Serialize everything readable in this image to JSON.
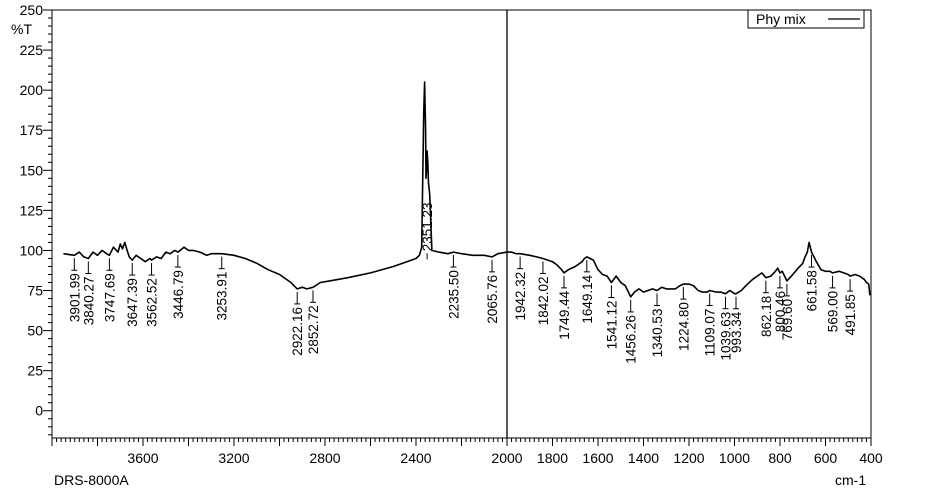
{
  "chart_data": {
    "type": "line",
    "ylabel": "%T",
    "xlabel": "cm-1",
    "instrument": "DRS-8000A",
    "xlim": [
      4000,
      400
    ],
    "ylim": [
      -17,
      250
    ],
    "x_reversed": true,
    "grid": false,
    "legend_position": "top-right",
    "y_ticks": [
      0,
      25,
      50,
      75,
      100,
      125,
      150,
      175,
      200,
      225,
      250
    ],
    "x_ticks": [
      3600,
      3200,
      2800,
      2400,
      2000,
      1600,
      1200,
      800,
      400
    ],
    "x_tick_labels": [
      "3600",
      "3200",
      "2800",
      "2400",
      "2000",
      "1800",
      "1600",
      "1400",
      "1200",
      "1000",
      "800",
      "600",
      "400"
    ],
    "x_tick_label_values": [
      3600,
      3200,
      2800,
      2400,
      2000,
      1800,
      1600,
      1400,
      1200,
      1000,
      800,
      600,
      400
    ],
    "cursor_x": 2000,
    "series": [
      {
        "name": "Phy mix",
        "color": "#000000",
        "points": [
          [
            3950,
            98
          ],
          [
            3901.99,
            97
          ],
          [
            3880,
            99
          ],
          [
            3860,
            96
          ],
          [
            3840.27,
            95
          ],
          [
            3820,
            99
          ],
          [
            3800,
            97
          ],
          [
            3780,
            100
          ],
          [
            3760,
            98
          ],
          [
            3747.69,
            97
          ],
          [
            3730,
            102
          ],
          [
            3710,
            99
          ],
          [
            3700,
            104
          ],
          [
            3690,
            101
          ],
          [
            3680,
            105
          ],
          [
            3670,
            100
          ],
          [
            3660,
            96
          ],
          [
            3647.39,
            94
          ],
          [
            3630,
            97
          ],
          [
            3610,
            95
          ],
          [
            3590,
            93
          ],
          [
            3570,
            95
          ],
          [
            3562.52,
            94
          ],
          [
            3540,
            96
          ],
          [
            3520,
            95
          ],
          [
            3500,
            99
          ],
          [
            3480,
            98
          ],
          [
            3460,
            100
          ],
          [
            3446.79,
            99
          ],
          [
            3420,
            102
          ],
          [
            3400,
            100
          ],
          [
            3380,
            100
          ],
          [
            3350,
            99
          ],
          [
            3320,
            97
          ],
          [
            3300,
            98
          ],
          [
            3253.91,
            98
          ],
          [
            3200,
            97
          ],
          [
            3150,
            95
          ],
          [
            3100,
            92
          ],
          [
            3050,
            88
          ],
          [
            3000,
            85
          ],
          [
            2950,
            80
          ],
          [
            2922.16,
            76
          ],
          [
            2900,
            77
          ],
          [
            2880,
            76
          ],
          [
            2852.72,
            77
          ],
          [
            2820,
            80
          ],
          [
            2780,
            81
          ],
          [
            2700,
            83
          ],
          [
            2600,
            86
          ],
          [
            2500,
            90
          ],
          [
            2440,
            93
          ],
          [
            2400,
            95
          ],
          [
            2385,
            97
          ],
          [
            2375,
            102
          ],
          [
            2366,
            185
          ],
          [
            2362,
            205
          ],
          [
            2358,
            175
          ],
          [
            2356,
            145
          ],
          [
            2354,
            150
          ],
          [
            2351.23,
            162
          ],
          [
            2348,
            155
          ],
          [
            2345,
            142
          ],
          [
            2340,
            135
          ],
          [
            2330,
            100
          ],
          [
            2300,
            99
          ],
          [
            2260,
            98
          ],
          [
            2235.5,
            99
          ],
          [
            2200,
            98
          ],
          [
            2150,
            97
          ],
          [
            2100,
            97
          ],
          [
            2065.76,
            96
          ],
          [
            2040,
            98
          ],
          [
            2000,
            99
          ],
          [
            1980,
            99
          ],
          [
            1960,
            98
          ],
          [
            1942.32,
            98
          ],
          [
            1900,
            97
          ],
          [
            1870,
            96
          ],
          [
            1842.02,
            95
          ],
          [
            1800,
            93
          ],
          [
            1780,
            91
          ],
          [
            1760,
            88
          ],
          [
            1749.44,
            86
          ],
          [
            1730,
            88
          ],
          [
            1700,
            90
          ],
          [
            1670,
            93
          ],
          [
            1660,
            95
          ],
          [
            1649.14,
            96
          ],
          [
            1620,
            94
          ],
          [
            1600,
            88
          ],
          [
            1580,
            85
          ],
          [
            1560,
            84
          ],
          [
            1541.12,
            80
          ],
          [
            1520,
            84
          ],
          [
            1500,
            80
          ],
          [
            1480,
            78
          ],
          [
            1470,
            75
          ],
          [
            1456.26,
            71
          ],
          [
            1440,
            74
          ],
          [
            1420,
            76
          ],
          [
            1400,
            74
          ],
          [
            1380,
            75
          ],
          [
            1360,
            76
          ],
          [
            1340.53,
            75
          ],
          [
            1320,
            77
          ],
          [
            1300,
            76
          ],
          [
            1280,
            76
          ],
          [
            1260,
            76
          ],
          [
            1240,
            78
          ],
          [
            1224.8,
            79
          ],
          [
            1200,
            79
          ],
          [
            1180,
            78
          ],
          [
            1160,
            75
          ],
          [
            1140,
            74
          ],
          [
            1120,
            74
          ],
          [
            1109.07,
            75
          ],
          [
            1080,
            74
          ],
          [
            1060,
            74
          ],
          [
            1039.63,
            73
          ],
          [
            1020,
            75
          ],
          [
            1000,
            73
          ],
          [
            993.34,
            73
          ],
          [
            970,
            75
          ],
          [
            950,
            78
          ],
          [
            920,
            82
          ],
          [
            900,
            84
          ],
          [
            880,
            86
          ],
          [
            862.18,
            83
          ],
          [
            840,
            84
          ],
          [
            820,
            87
          ],
          [
            810,
            89
          ],
          [
            800.46,
            86
          ],
          [
            790,
            87
          ],
          [
            780,
            84
          ],
          [
            769.6,
            81
          ],
          [
            750,
            84
          ],
          [
            720,
            89
          ],
          [
            700,
            92
          ],
          [
            690,
            96
          ],
          [
            680,
            99
          ],
          [
            672,
            105
          ],
          [
            661.58,
            99
          ],
          [
            640,
            93
          ],
          [
            620,
            88
          ],
          [
            600,
            87
          ],
          [
            580,
            87
          ],
          [
            569,
            86
          ],
          [
            540,
            87
          ],
          [
            520,
            86
          ],
          [
            500,
            85
          ],
          [
            491.85,
            84
          ],
          [
            470,
            85
          ],
          [
            450,
            84
          ],
          [
            430,
            82
          ],
          [
            420,
            80
          ],
          [
            410,
            79
          ],
          [
            405,
            72
          ]
        ]
      }
    ],
    "peak_labels": [
      {
        "label": "3901.99",
        "x": 3901.99,
        "y": 97
      },
      {
        "label": "3840.27",
        "x": 3840.27,
        "y": 95
      },
      {
        "label": "3747.69",
        "x": 3747.69,
        "y": 97
      },
      {
        "label": "3647.39",
        "x": 3647.39,
        "y": 94
      },
      {
        "label": "3562.52",
        "x": 3562.52,
        "y": 94
      },
      {
        "label": "3446.79",
        "x": 3446.79,
        "y": 99
      },
      {
        "label": "3253.91",
        "x": 3253.91,
        "y": 98
      },
      {
        "label": "2922.16",
        "x": 2922.16,
        "y": 76
      },
      {
        "label": "2852.72",
        "x": 2852.72,
        "y": 77
      },
      {
        "label": "2351.23",
        "x": 2351.23,
        "y": 162
      },
      {
        "label": "2235.50",
        "x": 2235.5,
        "y": 99
      },
      {
        "label": "2065.76",
        "x": 2065.76,
        "y": 96
      },
      {
        "label": "1942.32",
        "x": 1942.32,
        "y": 98
      },
      {
        "label": "1842.02",
        "x": 1842.02,
        "y": 95
      },
      {
        "label": "1749.44",
        "x": 1749.44,
        "y": 86
      },
      {
        "label": "1649.14",
        "x": 1649.14,
        "y": 96
      },
      {
        "label": "1541.12",
        "x": 1541.12,
        "y": 80
      },
      {
        "label": "1456.26",
        "x": 1456.26,
        "y": 71
      },
      {
        "label": "1340.53",
        "x": 1340.53,
        "y": 75
      },
      {
        "label": "1224.80",
        "x": 1224.8,
        "y": 79
      },
      {
        "label": "1109.07",
        "x": 1109.07,
        "y": 75
      },
      {
        "label": "1039.63",
        "x": 1039.63,
        "y": 73
      },
      {
        "label": "993.34",
        "x": 993.34,
        "y": 73
      },
      {
        "label": "862.18",
        "x": 862.18,
        "y": 83
      },
      {
        "label": "800.46",
        "x": 800.46,
        "y": 86
      },
      {
        "label": "769.60",
        "x": 769.6,
        "y": 81
      },
      {
        "label": "661.58",
        "x": 661.58,
        "y": 99
      },
      {
        "label": "569.00",
        "x": 569,
        "y": 86
      },
      {
        "label": "491.85",
        "x": 491.85,
        "y": 84
      }
    ]
  }
}
